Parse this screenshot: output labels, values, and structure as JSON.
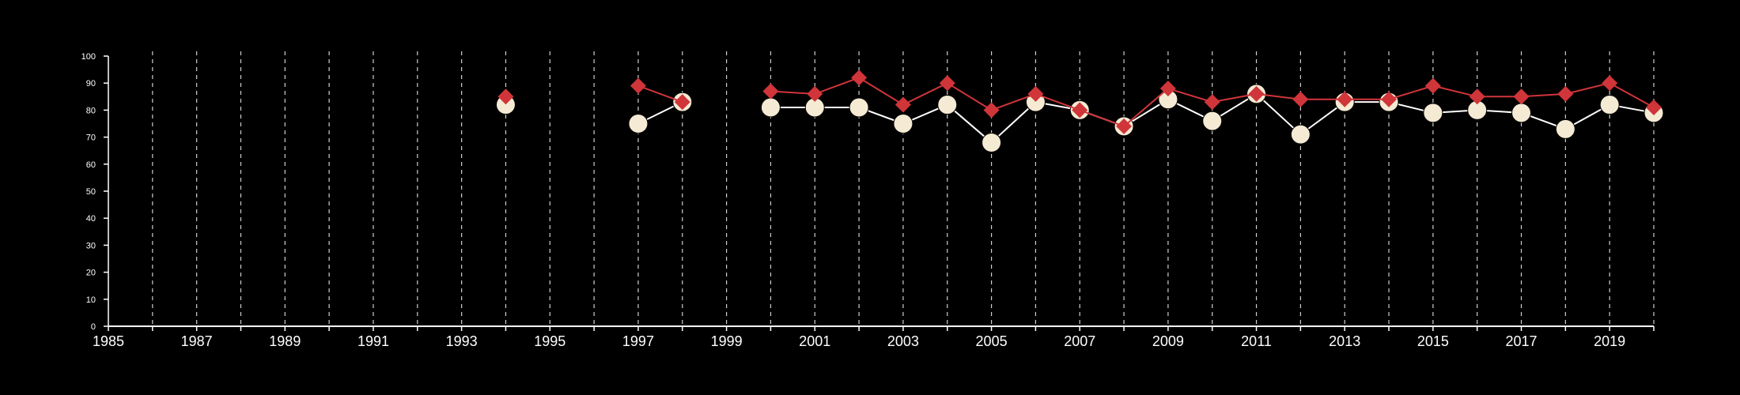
{
  "colors": {
    "background": "#000000",
    "axis": "#ffffff",
    "grid": "#cfcfcf",
    "series_a_fill": "#f5ead3",
    "series_a_line": "#ffffff",
    "series_b": "#d0353a"
  },
  "chart_data": {
    "type": "line",
    "title": "",
    "xlabel": "",
    "ylabel": "",
    "xlim": [
      1985,
      2020
    ],
    "ylim": [
      0,
      100
    ],
    "x_ticks": [
      "1985",
      "1987",
      "1989",
      "1991",
      "1993",
      "1995",
      "1997",
      "1999",
      "2001",
      "2003",
      "2005",
      "2007",
      "2009",
      "2011",
      "2013",
      "2015",
      "2017",
      "2019"
    ],
    "y_ticks": [
      "0",
      "10",
      "20",
      "30",
      "40",
      "50",
      "60",
      "70",
      "80",
      "90",
      "100"
    ],
    "grid": "vertical dashed lines at each year",
    "legend": "none",
    "series": [
      {
        "marker": "circle",
        "color": "#f5ead3",
        "line_color": "#ffffff",
        "points": [
          {
            "x": 1994,
            "y": 82
          },
          {
            "x": 1997,
            "y": 75
          },
          {
            "x": 1998,
            "y": 83
          },
          {
            "x": 2000,
            "y": 81
          },
          {
            "x": 2001,
            "y": 81
          },
          {
            "x": 2002,
            "y": 81
          },
          {
            "x": 2003,
            "y": 75
          },
          {
            "x": 2004,
            "y": 82
          },
          {
            "x": 2005,
            "y": 68
          },
          {
            "x": 2006,
            "y": 83
          },
          {
            "x": 2007,
            "y": 80
          },
          {
            "x": 2008,
            "y": 74
          },
          {
            "x": 2009,
            "y": 84
          },
          {
            "x": 2010,
            "y": 76
          },
          {
            "x": 2011,
            "y": 86
          },
          {
            "x": 2012,
            "y": 71
          },
          {
            "x": 2013,
            "y": 83
          },
          {
            "x": 2014,
            "y": 83
          },
          {
            "x": 2015,
            "y": 79
          },
          {
            "x": 2016,
            "y": 80
          },
          {
            "x": 2017,
            "y": 79
          },
          {
            "x": 2018,
            "y": 73
          },
          {
            "x": 2019,
            "y": 82
          },
          {
            "x": 2020,
            "y": 79
          }
        ]
      },
      {
        "marker": "diamond",
        "color": "#d0353a",
        "line_color": "#d0353a",
        "points": [
          {
            "x": 1994,
            "y": 85
          },
          {
            "x": 1997,
            "y": 89
          },
          {
            "x": 1998,
            "y": 83
          },
          {
            "x": 2000,
            "y": 87
          },
          {
            "x": 2001,
            "y": 86
          },
          {
            "x": 2002,
            "y": 92
          },
          {
            "x": 2003,
            "y": 82
          },
          {
            "x": 2004,
            "y": 90
          },
          {
            "x": 2005,
            "y": 80
          },
          {
            "x": 2006,
            "y": 86
          },
          {
            "x": 2007,
            "y": 80
          },
          {
            "x": 2008,
            "y": 74
          },
          {
            "x": 2009,
            "y": 88
          },
          {
            "x": 2010,
            "y": 83
          },
          {
            "x": 2011,
            "y": 86
          },
          {
            "x": 2012,
            "y": 84
          },
          {
            "x": 2013,
            "y": 84
          },
          {
            "x": 2014,
            "y": 84
          },
          {
            "x": 2015,
            "y": 89
          },
          {
            "x": 2016,
            "y": 85
          },
          {
            "x": 2017,
            "y": 85
          },
          {
            "x": 2018,
            "y": 86
          },
          {
            "x": 2019,
            "y": 90
          },
          {
            "x": 2020,
            "y": 81
          }
        ]
      }
    ]
  }
}
